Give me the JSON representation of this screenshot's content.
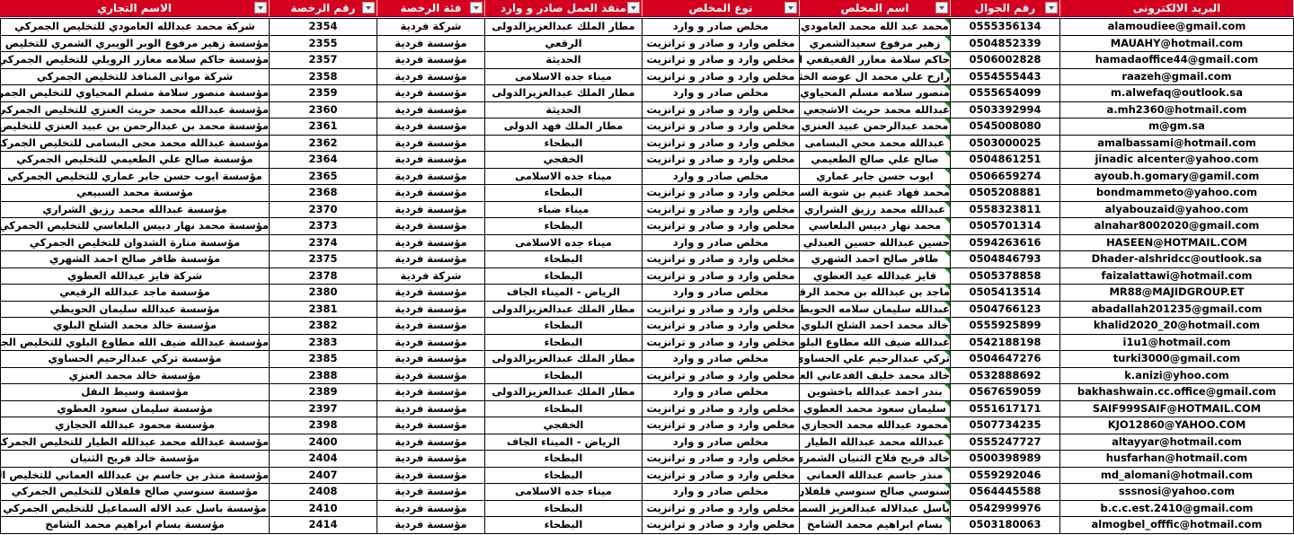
{
  "header_color": "#d50020",
  "columns": [
    {
      "label": "الاسم التجاري",
      "filter": true
    },
    {
      "label": "رقم الرخصة",
      "filter": true
    },
    {
      "label": "فئة الرخصة",
      "filter": true
    },
    {
      "label": "منفذ العمل صادر و وارد",
      "filter": true
    },
    {
      "label": "نوع المخلص",
      "filter": true
    },
    {
      "label": "اسم المخلص",
      "filter": true
    },
    {
      "label": "رقم الجوال",
      "filter": true
    },
    {
      "label": "البريد الالكترونى",
      "filter": false
    }
  ],
  "rows": [
    {
      "trade": "شركة محمد عبدالله العامودي للتخليص الجمركي",
      "license": "2354",
      "category": "شركة فردية",
      "port": "مطار الملك عبدالعزيزالدولى",
      "type": "مخلص صادر و وارد",
      "name": "محمد عبد الله محمد العامودي",
      "phone": "0555356134",
      "email": "alamoudiee@gmail.com"
    },
    {
      "trade": "مؤسسة زهير مرفوع الوبر الويبري الشمري للتخليص الجمركي",
      "license": "2355",
      "category": "مؤسسة فردية",
      "port": "الرقعي",
      "type": "مخلص وارد و صادر و ترانزيت",
      "name": "زهير مرفوع سعيدالشمري",
      "phone": "0504852339",
      "email": "MAUAHY@hotmail.com"
    },
    {
      "trade": "مؤسسة حاكم سلامه معازر الرويلي للتخليص الجمركي",
      "license": "2357",
      "category": "مؤسسة فردية",
      "port": "الحديثة",
      "type": "مخلص وارد و صادر و ترانزيت",
      "name": "حاكم سلامة معازر القعيقعي الرويلي",
      "phone": "0506002828",
      "email": "hamadaoffice44@gmail.com"
    },
    {
      "trade": "شركة موانى المنافذ للتخليص الجمركي",
      "license": "2358",
      "category": "مؤسسة فردية",
      "port": "ميناء جده الاسلامى",
      "type": "مخلص وارد و صادر و ترانزيت",
      "name": "رازح علي محمد ال عوضه الخثعمي",
      "phone": "0554555443",
      "email": "raazeh@gmail.com"
    },
    {
      "trade": "مؤسسة منصور سلامة مسلم المحياوي للتخليص الجمركي",
      "license": "2359",
      "category": "مؤسسة فردية",
      "port": "مطار الملك عبدالعزيزالدولى",
      "type": "مخلص صادر و وارد",
      "name": "منصور سلامه مسلم المحياوي",
      "phone": "0555654099",
      "email": "m.alwefaq@outlook.sa"
    },
    {
      "trade": "مؤسسة عبدالله محمد حريث العنزي للتخليص الجمركي",
      "license": "2360",
      "category": "مؤسسة فردية",
      "port": "الحديثة",
      "type": "مخلص وارد و صادر و ترانزيت",
      "name": "عبدالله محمد حريث الاشجعي العنزي",
      "phone": "0503392994",
      "email": "a.mh2360@hotmail.com"
    },
    {
      "trade": "مؤسسة محمد بن عبدالرحمن بن عبيد العنزي للتخليص الجمركي",
      "license": "2361",
      "category": "مؤسسة فردية",
      "port": "مطار الملك فهد الدولى",
      "type": "مخلص وارد و صادر و ترانزيت",
      "name": "محمد عبدالرحمن عبيد العنزي",
      "phone": "0545008080",
      "email": "m@gm.sa"
    },
    {
      "trade": "مؤسسة عبدالله محمد محى البسامى للتخليص الجمركي",
      "license": "2362",
      "category": "مؤسسة فردية",
      "port": "البطحاء",
      "type": "مخلص وارد و صادر و ترانزيت",
      "name": "عبدالله محمد محي البسامى",
      "phone": "0503000025",
      "email": "amalbassami@hotmail.com"
    },
    {
      "trade": "مؤسسة صالح علي الطعيمي للتخليص الجمركي",
      "license": "2364",
      "category": "مؤسسة فردية",
      "port": "الخفجي",
      "type": "مخلص وارد و صادر و ترانزيت",
      "name": "صالح علي صالح الطعيمي",
      "phone": "0504861251",
      "email": "jinadic alcenter@yahoo.com"
    },
    {
      "trade": "مؤسسة ايوب حسن جابر غماري للتخليص الجمركي",
      "license": "2365",
      "category": "مؤسسة فردية",
      "port": "ميناء جده الاسلامى",
      "type": "مخلص صادر و وارد",
      "name": "ايوب حسن جابر غماري",
      "phone": "0506659274",
      "email": "ayoub.h.gomary@gamil.com"
    },
    {
      "trade": "مؤسسة محمد السبيعي",
      "license": "2368",
      "category": "مؤسسة فردية",
      "port": "البطحاء",
      "type": "مخلص وارد و صادر و ترانزيت",
      "name": "محمد فهاد غنيم بن شوية السبيعي",
      "phone": "0505208881",
      "email": "bondmammeto@yahoo.com"
    },
    {
      "trade": "مؤسسة عبدالله محمد رزيق الشراري",
      "license": "2370",
      "category": "مؤسسة فردية",
      "port": "ميناء ضباء",
      "type": "مخلص وارد و صادر و ترانزيت",
      "name": "عبدالله محمد رزيق الشراري",
      "phone": "0558323811",
      "email": "alyabouzaid@yahoo.com"
    },
    {
      "trade": "مؤسسة محمد نهار دبيس البلعاسي للتخليص الجمركي",
      "license": "2373",
      "category": "مؤسسة فردية",
      "port": "البطحاء",
      "type": "مخلص وارد و صادر و ترانزيت",
      "name": "محمد نهار دبيس البلعاسي",
      "phone": "0505701314",
      "email": "alnahar8002020@gmail.com"
    },
    {
      "trade": "مؤسسة منارة الشدوان للتخليص الجمركي",
      "license": "2374",
      "category": "مؤسسة فردية",
      "port": "ميناء جده الاسلامى",
      "type": "مخلص صادر و وارد",
      "name": "حسين عبدالله حسين العبدلي الغامدي",
      "phone": "0594263616",
      "email": "HASEEN@HOTMAIL.COM"
    },
    {
      "trade": "مؤسسة ظافر صالح احمد الشهري",
      "license": "2375",
      "category": "مؤسسة فردية",
      "port": "البطحاء",
      "type": "مخلص وارد و صادر و ترانزيت",
      "name": "ظافر صالح احمد الشهري",
      "phone": "0504846793",
      "email": "Dhader-alshridcc@outlook.sa"
    },
    {
      "trade": "شركة فايز عبدالله العطوي",
      "license": "2378",
      "category": "شركة فردية",
      "port": "البطحاء",
      "type": "مخلص وارد و صادر و ترانزيت",
      "name": "فايز عبدالله عيد العطوي",
      "phone": "0505378858",
      "email": "faizalattawi@hotmail.com"
    },
    {
      "trade": "مؤسسة ماجد عبدالله الرقيعي",
      "license": "2380",
      "category": "مؤسسة فردية",
      "port": "الرياض - الميناء الجاف",
      "type": "مخلص صادر و وارد",
      "name": "ماجد بن عبدالله بن محمد الرقيعي",
      "phone": "0505413514",
      "email": "MR88@MAJIDGROUP.ET"
    },
    {
      "trade": "مؤسسة عبدالله سليمان الحويطي",
      "license": "2381",
      "category": "مؤسسة فردية",
      "port": "مطار الملك عبدالعزيزالدولى",
      "type": "مخلص وارد و صادر و ترانزيت",
      "name": "عبدالله سليمان سلامه الحويطي",
      "phone": "0504766123",
      "email": "abadallah201235@gmail.com"
    },
    {
      "trade": "مؤسسة خالد محمد الشلح البلوي",
      "license": "2382",
      "category": "مؤسسة فردية",
      "port": "البطحاء",
      "type": "مخلص وارد و صادر و ترانزيت",
      "name": "خالد محمد احمد الشلح البلوي",
      "phone": "0555925899",
      "email": "khalid2020_20@hotmail.com"
    },
    {
      "trade": "مؤسسة عبدالله ضيف الله مطاوع البلوي للتخليص الجمركي",
      "license": "2383",
      "category": "مؤسسة فردية",
      "port": "البطحاء",
      "type": "مخلص وارد و صادر و ترانزيت",
      "name": "عبدالله ضيف الله مطاوع البلوي",
      "phone": "0542188198",
      "email": "i1u1@hotmail.com"
    },
    {
      "trade": "مؤسسة تركي عبدالرحيم الحساوي",
      "license": "2385",
      "category": "مؤسسة فردية",
      "port": "مطار الملك عبدالعزيزالدولى",
      "type": "مخلص صادر و وارد",
      "name": "تركي عبدالرحيم علي الحساوي",
      "phone": "0504647276",
      "email": "turki3000@gmail.com"
    },
    {
      "trade": "مؤسسة خالد محمد العنزي",
      "license": "2388",
      "category": "مؤسسة فردية",
      "port": "البطحاء",
      "type": "مخلص وارد و صادر و ترانزيت",
      "name": "خالد محمد خليف الفدعاني العنزي",
      "phone": "0532888692",
      "email": "k.anizi@yhoo.com"
    },
    {
      "trade": "مؤسسة وسيط النقل",
      "license": "2389",
      "category": "مؤسسة فردية",
      "port": "مطار الملك عبدالعزيزالدولى",
      "type": "مخلص صادر و وارد",
      "name": "بندر احمد عبدالله باخشوين",
      "phone": "0567659059",
      "email": "bakhashwain.cc.office@gmail.com"
    },
    {
      "trade": "مؤسسة سليمان سعود العطوي",
      "license": "2397",
      "category": "مؤسسة فردية",
      "port": "البطحاء",
      "type": "مخلص وارد و صادر و ترانزيت",
      "name": "سليمان سعود محمد العطوي",
      "phone": "0551617171",
      "email": "SAIF999SAIF@HOTMAIL.COM"
    },
    {
      "trade": "مؤسسة محمود عبدالله الحجازي",
      "license": "2398",
      "category": "مؤسسة فردية",
      "port": "الخفجي",
      "type": "مخلص وارد و صادر و ترانزيت",
      "name": "محمود عبدالله محمد الحجازي",
      "phone": "0507734235",
      "email": "KJO12860@YAHOO.COM"
    },
    {
      "trade": "مؤسسة عبدالله محمد عبدالله الطيار للتخليص الجمركي",
      "license": "2400",
      "category": "مؤسسة فردية",
      "port": "الرياض - الميناء الجاف",
      "type": "مخلص صادر و وارد",
      "name": "عبدالله محمد عبدالله الطيار",
      "phone": "0555247727",
      "email": "altayyar@hotmail.com"
    },
    {
      "trade": "مؤسسة خالد فريح الثنيان",
      "license": "2404",
      "category": "مؤسسة فردية",
      "port": "البطحاء",
      "type": "مخلص وارد و صادر و ترانزيت",
      "name": "خالد فريح فلاج الثنيان الشمري",
      "phone": "0500398989",
      "email": "husfarhan@hotmail.com"
    },
    {
      "trade": "مؤسسة منذر بن جاسم بن عبدالله العماني للتخليص الجمركي",
      "license": "2407",
      "category": "مؤسسة فردية",
      "port": "البطحاء",
      "type": "مخلص وارد و صادر و ترانزيت",
      "name": "منذر جاسم عبدالله العماني",
      "phone": "0559292046",
      "email": "md_alomani@hotmail.com"
    },
    {
      "trade": "مؤسسة سنوسي صالح فلفلان للتخليص الجمركي",
      "license": "2408",
      "category": "مؤسسة فردية",
      "port": "ميناء جده الاسلامى",
      "type": "مخلص صادر و وارد",
      "name": "سنوسي صالح سنوسي فلفلان",
      "phone": "0564445588",
      "email": "sssnosi@yahoo.com"
    },
    {
      "trade": "مؤسسة باسل عبد الاله السماعيل للتخليص الجمركي",
      "license": "2410",
      "category": "مؤسسة فردية",
      "port": "البطحاء",
      "type": "مخلص وارد و صادر و ترانزيت",
      "name": "باسل عبدالاله عبدالعزيز السماعيل",
      "phone": "0542999976",
      "email": "b.c.c.est.2410@gmail.com"
    },
    {
      "trade": "مؤسسة بسام ابراهيم محمد الشامخ",
      "license": "2414",
      "category": "مؤسسة فردية",
      "port": "البطحاء",
      "type": "مخلص وارد و صادر و ترانزيت",
      "name": "بسام ابراهيم محمد الشامخ",
      "phone": "0503180063",
      "email": "almogbel_offfic@hotmail.com"
    }
  ]
}
